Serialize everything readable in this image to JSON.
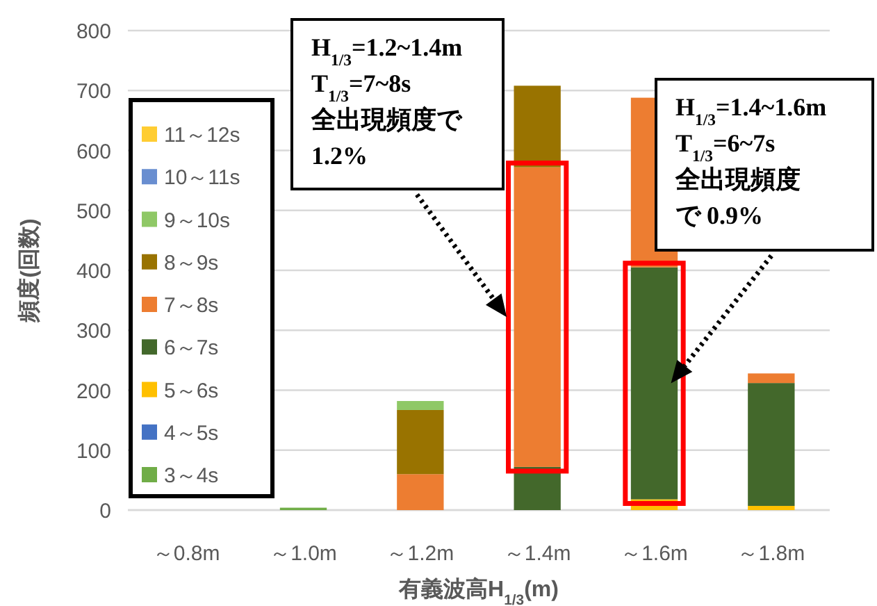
{
  "chart_data": {
    "type": "bar",
    "stacked": true,
    "xlabel": "有義波高H$_{1/3}$(m)",
    "ylabel": "頻度(回数)",
    "categories": [
      "～0.8m",
      "～1.0m",
      "～1.2m",
      "～1.4m",
      "～1.6m",
      "～1.8m"
    ],
    "series": [
      {
        "name": "3～4s",
        "color": "#70ad47",
        "values": [
          0,
          4,
          0,
          0,
          0,
          0
        ]
      },
      {
        "name": "4～5s",
        "color": "#4472c4",
        "values": [
          0,
          0,
          0,
          0,
          0,
          0
        ]
      },
      {
        "name": "5～6s",
        "color": "#ffc000",
        "values": [
          0,
          0,
          0,
          0,
          18,
          7
        ]
      },
      {
        "name": "6～7s",
        "color": "#43682b",
        "values": [
          0,
          0,
          0,
          72,
          387,
          205
        ]
      },
      {
        "name": "7～8s",
        "color": "#ed7d31",
        "values": [
          0,
          0,
          60,
          500,
          283,
          16
        ]
      },
      {
        "name": "8～9s",
        "color": "#997300",
        "values": [
          0,
          0,
          107,
          136,
          0,
          0
        ]
      },
      {
        "name": "9～10s",
        "color": "#8fc866",
        "values": [
          0,
          0,
          15,
          0,
          0,
          0
        ]
      },
      {
        "name": "10～11s",
        "color": "#698ed0",
        "values": [
          0,
          0,
          0,
          0,
          0,
          0
        ]
      },
      {
        "name": "11～12s",
        "color": "#ffcd33",
        "values": [
          0,
          0,
          0,
          0,
          0,
          0
        ]
      }
    ],
    "ylim": [
      0,
      800
    ],
    "yticks": [
      0,
      100,
      200,
      300,
      400,
      500,
      600,
      700,
      800
    ],
    "grid": "y",
    "legend": "left",
    "annotations": [
      "H$_{1/3}$=1.2~1.4m\nT$_{1/3}$=7~8s\n全出現頻度で1.2%",
      "H$_{1/3}$=1.4~1.6m\nT$_{1/3}$=6~7s\n全出現頻度で 0.9%"
    ]
  }
}
